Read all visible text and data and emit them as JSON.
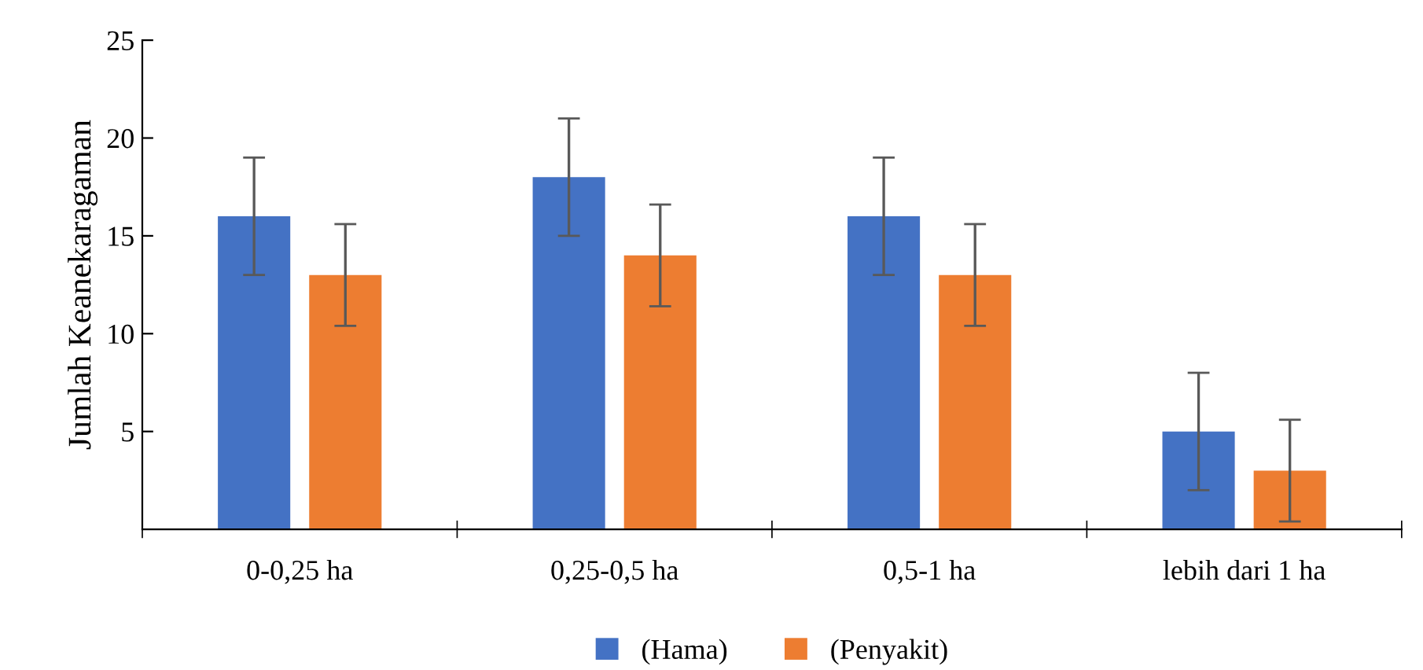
{
  "chart_data": {
    "type": "bar",
    "ylabel": "Jumlah Keanekaragaman",
    "categories": [
      "0-0,25 ha",
      "0,25-0,5 ha",
      "0,5-1 ha",
      "lebih dari 1 ha"
    ],
    "series": [
      {
        "name": "(Hama)",
        "color": "#4472c4",
        "values": [
          16,
          18,
          16,
          5
        ],
        "errors": [
          3,
          3,
          3,
          3
        ]
      },
      {
        "name": "(Penyakit)",
        "color": "#ed7d31",
        "values": [
          13,
          14,
          13,
          3
        ],
        "errors": [
          2.6,
          2.6,
          2.6,
          2.6
        ]
      }
    ],
    "ylim": [
      0,
      25
    ],
    "yticks": [
      5,
      10,
      15,
      20,
      25
    ],
    "grid": false,
    "legend": "bottom"
  }
}
